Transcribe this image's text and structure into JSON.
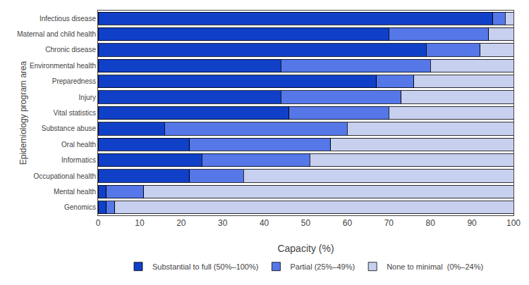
{
  "chart_data": {
    "type": "bar",
    "orientation": "horizontal",
    "stacked": true,
    "categories": [
      "Genomics",
      "Mental health",
      "Occupational health",
      "Informatics",
      "Oral health",
      "Substance abuse",
      "Vital statistics",
      "Injury",
      "Preparedness",
      "Environmental health",
      "Chronic disease",
      "Maternal and child health",
      "Infectious disease"
    ],
    "series": [
      {
        "name": "Substantial to full (50%–100%)",
        "color": "#1040c8",
        "values": [
          2,
          2,
          22,
          25,
          22,
          16,
          46,
          44,
          67,
          44,
          79,
          70,
          95
        ]
      },
      {
        "name": "Partial (25%–49%)",
        "color": "#5577e8",
        "values": [
          2,
          9,
          13,
          26,
          34,
          44,
          24,
          29,
          9,
          36,
          13,
          24,
          3
        ]
      },
      {
        "name": "None to minimal  (0%–24%)",
        "color": "#c8d0f0",
        "values": [
          96,
          89,
          65,
          49,
          44,
          40,
          30,
          27,
          24,
          20,
          8,
          6,
          2
        ]
      }
    ],
    "xlabel": "Capacity (%)",
    "ylabel": "Epidemiology program area",
    "xlim": [
      0,
      100
    ],
    "xticks": [
      0,
      10,
      20,
      30,
      40,
      50,
      60,
      70,
      80,
      90,
      100
    ],
    "grid": false,
    "legend": "bottom"
  }
}
